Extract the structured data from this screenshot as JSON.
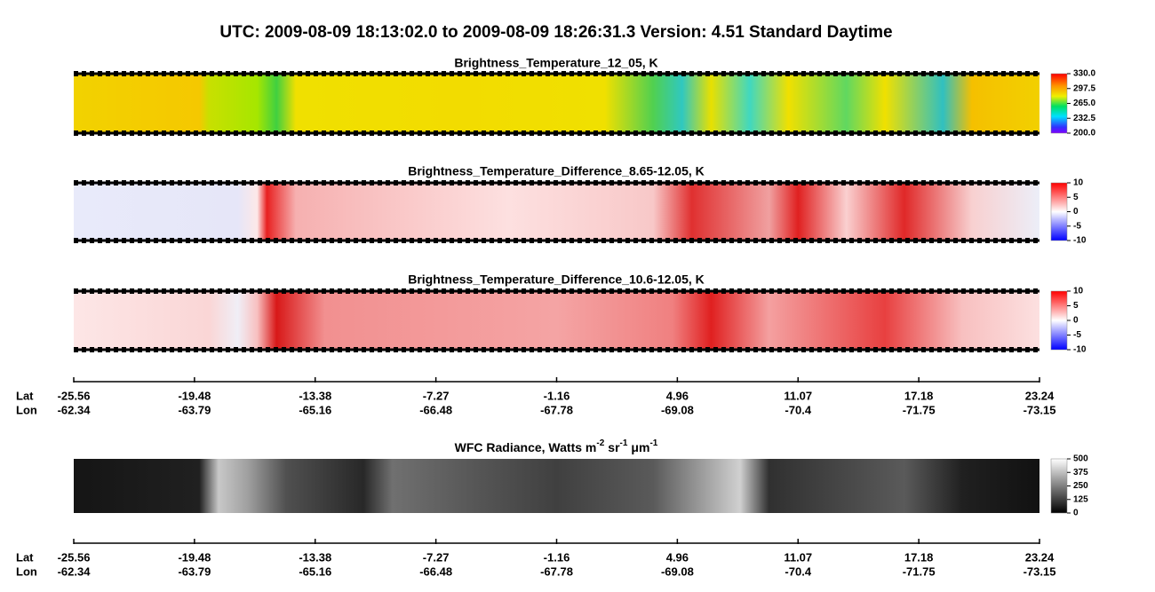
{
  "title": "UTC:  2009-08-09   18:13:02.0  to  2009-08-09   18:26:31.3    Version: 4.51  Standard Daytime",
  "panels": [
    {
      "title": "Brightness_Temperature_12_05, K",
      "colorbar": {
        "lim": [
          200,
          330
        ],
        "ticks": [
          {
            "value": 330,
            "label": "330.0"
          },
          297.5,
          {
            "value": 265,
            "label": "265.0"
          },
          232.5,
          {
            "value": 200,
            "label": "200.0"
          }
        ]
      }
    },
    {
      "title": "Brightness_Temperature_Difference_8.65-12.05, K",
      "colorbar": {
        "lim": [
          -10,
          10
        ],
        "ticks": [
          10,
          5,
          0,
          -5,
          -10
        ]
      }
    },
    {
      "title": "Brightness_Temperature_Difference_10.6-12.05, K",
      "colorbar": {
        "lim": [
          -10,
          10
        ],
        "ticks": [
          10,
          5,
          0,
          -5,
          -10
        ]
      }
    },
    {
      "title_parts": [
        "WFC Radiance, Watts m",
        "-2",
        "sr",
        "-1",
        "μm",
        "-1"
      ],
      "colorbar": {
        "lim": [
          0,
          500
        ],
        "ticks": [
          500,
          375,
          250,
          125,
          0
        ]
      }
    }
  ],
  "axes": [
    {
      "lat_label": "Lat",
      "lon_label": "Lon",
      "lat": [
        -25.56,
        -19.48,
        -13.38,
        -7.27,
        -1.16,
        4.96,
        11.07,
        17.18,
        23.24
      ],
      "lon": [
        -62.34,
        -63.79,
        -65.16,
        -66.48,
        -67.78,
        -69.08,
        -70.4,
        -71.75,
        -73.15
      ]
    },
    {
      "lat_label": "Lat",
      "lon_label": "Lon",
      "lat": [
        -25.56,
        -19.48,
        -13.38,
        -7.27,
        -1.16,
        4.96,
        11.07,
        17.18,
        23.24
      ],
      "lon": [
        -62.34,
        -63.79,
        -65.16,
        -66.48,
        -67.78,
        -69.08,
        -70.4,
        -71.75,
        -73.15
      ]
    }
  ]
}
